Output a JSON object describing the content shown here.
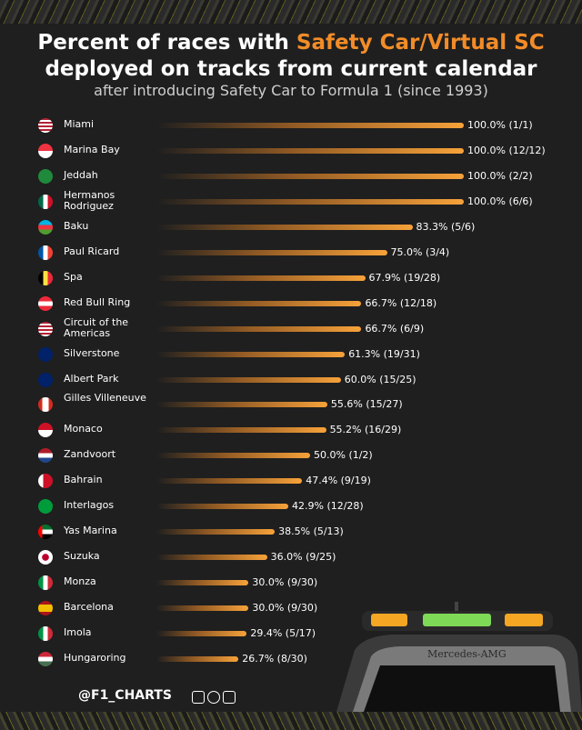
{
  "header": {
    "title_part1": "Percent of races with ",
    "title_accent": "Safety Car/Virtual SC",
    "title_line2": "deployed on tracks from current calendar",
    "subtitle": "after introducing Safety Car to Formula 1 (since 1993)"
  },
  "footer": {
    "handle": "@F1_CHARTS"
  },
  "colors": {
    "accent": "#f28c28",
    "background": "#1f1f1f",
    "bar": "#f7a23a"
  },
  "chart_data": {
    "type": "bar",
    "orientation": "horizontal",
    "xlim": [
      0,
      100
    ],
    "categories": [
      "Miami",
      "Marina Bay",
      "Jeddah",
      "Hermanos Rodriguez",
      "Baku",
      "Paul Ricard",
      "Spa",
      "Red Bull Ring",
      "Circuit of the Americas",
      "Silverstone",
      "Albert Park",
      "Gilles Villeneuve",
      "Monaco",
      "Zandvoort",
      "Bahrain",
      "Interlagos",
      "Yas Marina",
      "Suzuka",
      "Monza",
      "Barcelona",
      "Imola",
      "Hungaroring"
    ],
    "values": [
      100.0,
      100.0,
      100.0,
      100.0,
      83.3,
      75.0,
      67.9,
      66.7,
      66.7,
      61.3,
      60.0,
      55.6,
      55.2,
      50.0,
      47.4,
      42.9,
      38.5,
      36.0,
      30.0,
      30.0,
      29.4,
      26.7
    ],
    "data_labels": [
      "100.0% (1/1)",
      "100.0% (12/12)",
      "100.0% (2/2)",
      "100.0% (6/6)",
      "83.3% (5/6)",
      "75.0% (3/4)",
      "67.9% (19/28)",
      "66.7% (12/18)",
      "66.7% (6/9)",
      "61.3% (19/31)",
      "60.0% (15/25)",
      "55.6% (15/27)",
      "55.2% (16/29)",
      "50.0% (1/2)",
      "47.4% (9/19)",
      "42.9% (12/28)",
      "38.5% (5/13)",
      "36.0% (9/25)",
      "30.0% (9/30)",
      "30.0% (9/30)",
      "29.4% (5/17)",
      "26.7% (8/30)"
    ],
    "flags": [
      "us",
      "sg",
      "sa",
      "mx",
      "az",
      "fr",
      "be",
      "at",
      "us",
      "gb",
      "au",
      "ca",
      "mc",
      "nl",
      "bh",
      "br",
      "ae",
      "jp",
      "it",
      "es",
      "it",
      "hu"
    ]
  }
}
